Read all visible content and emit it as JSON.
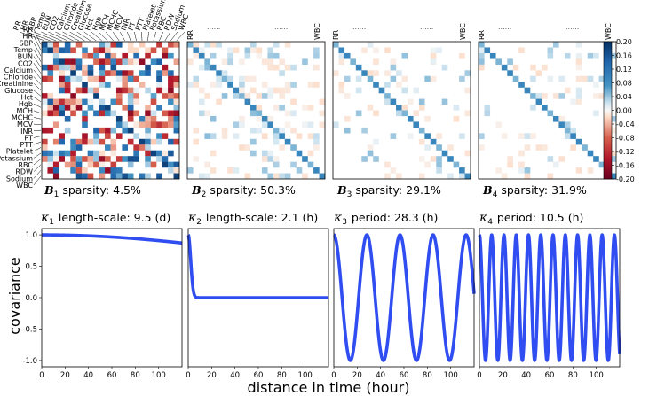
{
  "figure": {
    "variables": [
      "RR",
      "HR",
      "SBP",
      "Temp",
      "BUN",
      "CO2",
      "Calcium",
      "Chloride",
      "Creatinine",
      "Glucose",
      "Hct",
      "Hgb",
      "MCH",
      "MCHC",
      "MCV",
      "INR",
      "PT",
      "PTT",
      "Platelet",
      "Potassium",
      "RBC",
      "RDW",
      "Sodium",
      "WBC"
    ],
    "ellipsis": "......",
    "colorbar": {
      "range": [
        -0.2,
        0.2
      ],
      "ticks": [
        "0.20",
        "0.16",
        "0.12",
        "0.08",
        "0.04",
        "0.00",
        "-0.04",
        "-0.08",
        "-0.12",
        "-0.16",
        "-0.20"
      ],
      "high_color": "#053061",
      "mid_color": "#f7f7f7",
      "low_color": "#67001f"
    },
    "line_color": "#2f4df0",
    "xlabel": "distance in time (hour)",
    "ylabel": "covariance"
  },
  "chart_data": [
    {
      "type": "heatmap",
      "symbol": "B",
      "subscript": "1",
      "caption": "sparsity: 4.5%",
      "sparsity_percent": 4.5
    },
    {
      "type": "heatmap",
      "symbol": "B",
      "subscript": "2",
      "caption": "sparsity: 50.3%",
      "sparsity_percent": 50.3
    },
    {
      "type": "heatmap",
      "symbol": "B",
      "subscript": "3",
      "caption": "sparsity: 29.1%",
      "sparsity_percent": 29.1
    },
    {
      "type": "heatmap",
      "symbol": "B",
      "subscript": "4",
      "caption": "sparsity: 31.9%",
      "sparsity_percent": 31.9
    },
    {
      "type": "line",
      "symbol": "κ",
      "subscript": "1",
      "caption": "length-scale: 9.5 (d)",
      "kernel": "squared-exponential",
      "length_scale_hours": 228,
      "xlim": [
        0,
        120
      ],
      "ylim": [
        -1.1,
        1.1
      ],
      "xticks": [
        0,
        20,
        40,
        60,
        80,
        100
      ],
      "yticks": [
        -1.0,
        -0.5,
        0.0,
        0.5,
        1.0
      ],
      "xtick_labels": [
        "0",
        "20",
        "40",
        "60",
        "80",
        "100"
      ],
      "ytick_labels": [
        "-1.0",
        "-0.5",
        "0.0",
        "0.5",
        "1.0"
      ]
    },
    {
      "type": "line",
      "symbol": "κ",
      "subscript": "2",
      "caption": "length-scale: 2.1 (h)",
      "kernel": "squared-exponential",
      "length_scale_hours": 2.1,
      "xlim": [
        0,
        120
      ],
      "ylim": [
        -1.1,
        1.1
      ],
      "xticks": [
        0,
        20,
        40,
        60,
        80,
        100
      ],
      "xtick_labels": [
        "0",
        "20",
        "40",
        "60",
        "80",
        "100"
      ]
    },
    {
      "type": "line",
      "symbol": "κ",
      "subscript": "3",
      "caption": "period: 28.3 (h)",
      "kernel": "cosine",
      "period_hours": 28.3,
      "xlim": [
        0,
        120
      ],
      "ylim": [
        -1.1,
        1.1
      ],
      "xticks": [
        0,
        20,
        40,
        60,
        80,
        100
      ],
      "xtick_labels": [
        "0",
        "20",
        "40",
        "60",
        "80",
        "100"
      ]
    },
    {
      "type": "line",
      "symbol": "κ",
      "subscript": "4",
      "caption": "period: 10.5 (h)",
      "kernel": "cosine",
      "period_hours": 10.5,
      "xlim": [
        0,
        120
      ],
      "ylim": [
        -1.1,
        1.1
      ],
      "xticks": [
        0,
        20,
        40,
        60,
        80,
        100
      ],
      "xtick_labels": [
        "0",
        "20",
        "40",
        "60",
        "80",
        "100"
      ]
    }
  ]
}
